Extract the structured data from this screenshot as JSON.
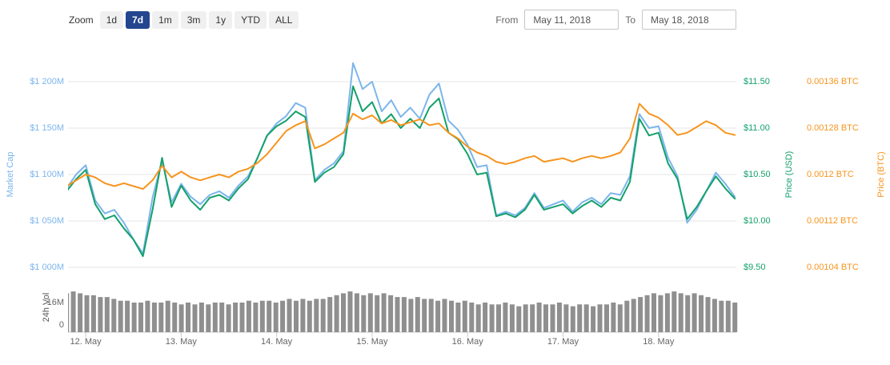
{
  "toolbar": {
    "zoom_label": "Zoom",
    "buttons": [
      "1d",
      "7d",
      "1m",
      "3m",
      "1y",
      "YTD",
      "ALL"
    ],
    "selected": "7d",
    "from_label": "From",
    "from_value": "May 11, 2018",
    "to_label": "To",
    "to_value": "May 18, 2018"
  },
  "axes": {
    "left_title": "Market Cap",
    "left_ticks": [
      "$1 200M",
      "$1 150M",
      "$1 100M",
      "$1 050M",
      "$1 000M"
    ],
    "right_usd_title": "Price (USD)",
    "right_usd_ticks": [
      "$11.50",
      "$11.00",
      "$10.50",
      "$10.00",
      "$9.50"
    ],
    "right_btc_title": "Price (BTC)",
    "right_btc_ticks": [
      "0.00136 BTC",
      "0.00128 BTC",
      "0.0012 BTC",
      "0.00112 BTC",
      "0.00104 BTC"
    ],
    "vol_title": "24h Vol",
    "vol_ticks": [
      "16M",
      "0"
    ],
    "x_ticks": [
      "12. May",
      "13. May",
      "14. May",
      "15. May",
      "16. May",
      "17. May",
      "18. May"
    ]
  },
  "colors": {
    "market_cap": "#7cb5ec",
    "price_usd": "#14a06b",
    "price_btc": "#f7941d",
    "volume": "#8f8f8f",
    "grid": "#e6e6e6",
    "axis_line": "#cccccc",
    "x_label": "#666666",
    "vol_label": "#666666",
    "button_selected_bg": "#24468f"
  },
  "chart_data": {
    "type": "line",
    "title": "",
    "x_unit": "days since 12 May 2018 00:00",
    "x_tick_labels": [
      "12. May",
      "13. May",
      "14. May",
      "15. May",
      "16. May",
      "17. May",
      "18. May"
    ],
    "x": [
      -0.2,
      -0.1,
      0,
      0.1,
      0.2,
      0.3,
      0.4,
      0.5,
      0.6,
      0.7,
      0.8,
      0.9,
      1,
      1.1,
      1.2,
      1.3,
      1.4,
      1.5,
      1.6,
      1.7,
      1.8,
      1.9,
      2,
      2.1,
      2.2,
      2.3,
      2.4,
      2.5,
      2.6,
      2.7,
      2.8,
      2.9,
      3,
      3.1,
      3.2,
      3.3,
      3.4,
      3.5,
      3.6,
      3.7,
      3.8,
      3.9,
      4,
      4.1,
      4.2,
      4.3,
      4.4,
      4.5,
      4.6,
      4.7,
      4.8,
      4.9,
      5,
      5.1,
      5.2,
      5.3,
      5.4,
      5.5,
      5.6,
      5.7,
      5.8,
      5.9,
      6,
      6.1,
      6.2,
      6.3,
      6.4,
      6.5,
      6.6,
      6.7,
      6.8
    ],
    "series": [
      {
        "name": "Market Cap",
        "axis": "market_cap_usd_millions",
        "ylim": [
          1000,
          1200
        ],
        "values": [
          1085,
          1100,
          1110,
          1072,
          1058,
          1062,
          1048,
          1030,
          1015,
          1075,
          1115,
          1070,
          1090,
          1076,
          1068,
          1078,
          1082,
          1075,
          1088,
          1098,
          1118,
          1142,
          1155,
          1163,
          1177,
          1172,
          1094,
          1105,
          1112,
          1125,
          1220,
          1192,
          1200,
          1168,
          1180,
          1162,
          1172,
          1160,
          1186,
          1198,
          1158,
          1148,
          1132,
          1108,
          1110,
          1056,
          1060,
          1056,
          1064,
          1080,
          1064,
          1068,
          1072,
          1060,
          1070,
          1075,
          1068,
          1080,
          1078,
          1098,
          1165,
          1150,
          1152,
          1118,
          1098,
          1048,
          1062,
          1082,
          1102,
          1090,
          1076
        ]
      },
      {
        "name": "Price (USD)",
        "axis": "price_usd",
        "ylim": [
          9.5,
          11.5
        ],
        "values": [
          10.32,
          10.45,
          10.55,
          10.18,
          10.02,
          10.06,
          9.92,
          9.8,
          9.62,
          10.12,
          10.68,
          10.15,
          10.38,
          10.22,
          10.12,
          10.25,
          10.28,
          10.22,
          10.35,
          10.45,
          10.68,
          10.92,
          11.02,
          11.08,
          11.18,
          11.12,
          10.42,
          10.52,
          10.58,
          10.72,
          11.45,
          11.18,
          11.28,
          11.05,
          11.15,
          11.0,
          11.1,
          11.0,
          11.22,
          11.32,
          10.95,
          10.88,
          10.72,
          10.5,
          10.52,
          10.05,
          10.08,
          10.04,
          10.12,
          10.28,
          10.12,
          10.15,
          10.18,
          10.08,
          10.16,
          10.22,
          10.15,
          10.25,
          10.22,
          10.42,
          11.1,
          10.92,
          10.95,
          10.62,
          10.45,
          10.02,
          10.15,
          10.32,
          10.48,
          10.35,
          10.24
        ]
      },
      {
        "name": "Price (BTC)",
        "axis": "price_btc",
        "ylim": [
          0.00104,
          0.00136
        ],
        "values": [
          0.00118,
          0.00119,
          0.0012,
          0.001195,
          0.001185,
          0.00118,
          0.001185,
          0.00118,
          0.001175,
          0.00119,
          0.001215,
          0.001195,
          0.001205,
          0.001195,
          0.00119,
          0.001195,
          0.0012,
          0.001195,
          0.001205,
          0.00121,
          0.00122,
          0.001235,
          0.001255,
          0.001275,
          0.001285,
          0.001292,
          0.001245,
          0.001252,
          0.001262,
          0.001272,
          0.001305,
          0.001295,
          0.001302,
          0.001288,
          0.001294,
          0.001285,
          0.00129,
          0.001295,
          0.001285,
          0.001288,
          0.001272,
          0.001262,
          0.001248,
          0.001238,
          0.001232,
          0.001222,
          0.001218,
          0.001222,
          0.001228,
          0.001232,
          0.001222,
          0.001225,
          0.001228,
          0.001222,
          0.001228,
          0.001232,
          0.001228,
          0.001232,
          0.001238,
          0.001262,
          0.001322,
          0.001305,
          0.001298,
          0.001285,
          0.001268,
          0.001272,
          0.001282,
          0.001292,
          0.001285,
          0.001272,
          0.001268
        ]
      }
    ],
    "volume_series": {
      "name": "24h Vol",
      "type": "bar",
      "unit": "millions USD",
      "ylim": [
        0,
        24
      ],
      "tick_values": [
        16,
        0
      ],
      "x_start": -0.2,
      "x_end": 6.8,
      "values": [
        21,
        22,
        21,
        20,
        20,
        19,
        19,
        18,
        17,
        17,
        16,
        16,
        17,
        16,
        16,
        17,
        16,
        15,
        16,
        15,
        16,
        15,
        16,
        16,
        15,
        16,
        16,
        17,
        16,
        17,
        17,
        16,
        17,
        18,
        17,
        18,
        17,
        18,
        18,
        19,
        20,
        21,
        22,
        21,
        20,
        21,
        20,
        21,
        20,
        19,
        19,
        18,
        19,
        18,
        18,
        17,
        18,
        17,
        16,
        17,
        16,
        15,
        16,
        15,
        15,
        16,
        15,
        14,
        15,
        15,
        16,
        15,
        15,
        16,
        15,
        14,
        15,
        15,
        14,
        15,
        15,
        16,
        15,
        17,
        18,
        19,
        20,
        21,
        20,
        21,
        22,
        21,
        20,
        21,
        20,
        19,
        18,
        17,
        17,
        16
      ]
    }
  }
}
